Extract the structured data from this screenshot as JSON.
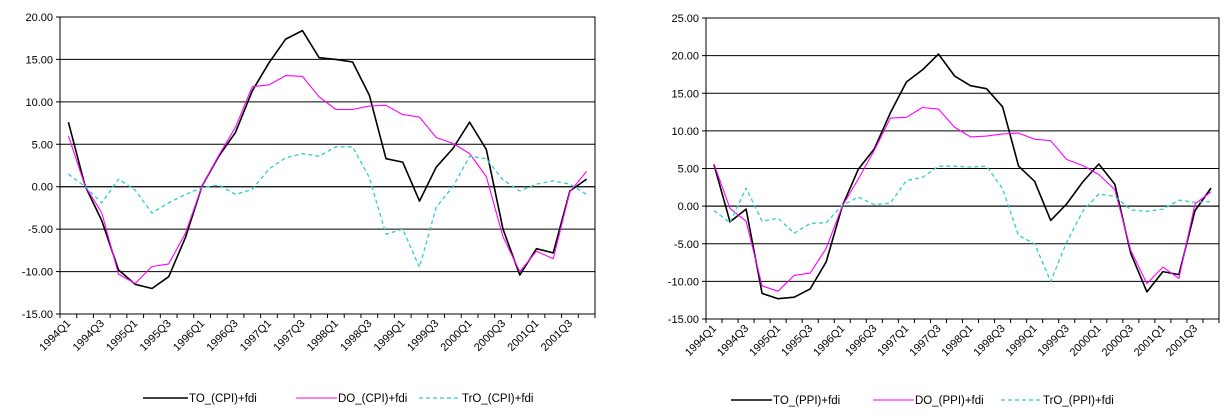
{
  "chart_data": [
    {
      "type": "line",
      "title": "",
      "xlabel": "",
      "ylabel": "",
      "ylim": [
        -15,
        20
      ],
      "ytick_step": 5,
      "ytick_labels": [
        "20.00",
        "15.00",
        "10.00",
        "5.00",
        "0.00",
        "-5.00",
        "-10.00",
        "-15.00"
      ],
      "grid": true,
      "legend": "bottom",
      "x": [
        "1994Q1",
        "1994Q2",
        "1994Q3",
        "1994Q4",
        "1995Q1",
        "1995Q2",
        "1995Q3",
        "1995Q4",
        "1996Q1",
        "1996Q2",
        "1996Q3",
        "1996Q4",
        "1997Q1",
        "1997Q2",
        "1997Q3",
        "1997Q4",
        "1998Q1",
        "1998Q2",
        "1998Q3",
        "1998Q4",
        "1999Q1",
        "1999Q2",
        "1999Q3",
        "1999Q4",
        "2000Q1",
        "2000Q2",
        "2000Q3",
        "2000Q4",
        "2001Q1",
        "2001Q2",
        "2001Q3",
        "2001Q4"
      ],
      "x_tick_labels": [
        "1994Q1",
        "1994Q3",
        "1995Q1",
        "1995Q3",
        "1996Q1",
        "1996Q3",
        "1997Q1",
        "1997Q3",
        "1998Q1",
        "1998Q3",
        "1999Q1",
        "1999Q3",
        "2000Q1",
        "2000Q3",
        "2001Q1",
        "2001Q3"
      ],
      "series": [
        {
          "name": "TO_(CPI)+fdi",
          "color": "#000000",
          "style": "solid",
          "values": [
            7.6,
            0.1,
            -4.0,
            -9.8,
            -11.5,
            -12.0,
            -10.6,
            -6.0,
            0.1,
            3.6,
            6.4,
            11.3,
            14.6,
            17.4,
            18.4,
            15.2,
            15.0,
            14.7,
            10.8,
            3.3,
            2.9,
            -1.7,
            2.3,
            4.5,
            7.6,
            4.4,
            -5.0,
            -10.4,
            -7.3,
            -7.8,
            -0.5,
            0.9
          ]
        },
        {
          "name": "DO_(CPI)+fdi",
          "color": "#ff00ff",
          "style": "solid",
          "values": [
            6.0,
            0.1,
            -3.1,
            -10.3,
            -11.4,
            -9.4,
            -9.1,
            -5.5,
            0.1,
            3.7,
            7.0,
            11.8,
            12.0,
            13.1,
            13.0,
            10.6,
            9.1,
            9.1,
            9.5,
            9.6,
            8.5,
            8.2,
            5.8,
            5.1,
            3.9,
            1.2,
            -5.9,
            -10.0,
            -7.6,
            -8.5,
            -0.6,
            1.8
          ]
        },
        {
          "name": "TrO_(CPI)+fdi",
          "color": "#33cccc",
          "style": "dashed",
          "values": [
            1.5,
            0.0,
            -1.9,
            0.9,
            -0.4,
            -3.1,
            -1.9,
            -0.9,
            -0.1,
            0.2,
            -0.9,
            -0.3,
            2.1,
            3.4,
            3.9,
            3.6,
            4.7,
            4.7,
            1.1,
            -5.6,
            -5.0,
            -9.5,
            -2.4,
            0.0,
            3.6,
            3.3,
            0.8,
            -0.5,
            0.3,
            0.7,
            0.3,
            -0.9
          ]
        }
      ]
    },
    {
      "type": "line",
      "title": "",
      "xlabel": "",
      "ylabel": "",
      "ylim": [
        -15,
        25
      ],
      "ytick_step": 5,
      "ytick_labels": [
        "25.00",
        "20.00",
        "15.00",
        "10.00",
        "5.00",
        "0.00",
        "-5.00",
        "-10.00",
        "-15.00"
      ],
      "grid": true,
      "legend": "bottom",
      "x": [
        "1994Q1",
        "1994Q2",
        "1994Q3",
        "1994Q4",
        "1995Q1",
        "1995Q2",
        "1995Q3",
        "1995Q4",
        "1996Q1",
        "1996Q2",
        "1996Q3",
        "1996Q4",
        "1997Q1",
        "1997Q2",
        "1997Q3",
        "1997Q4",
        "1998Q1",
        "1998Q2",
        "1998Q3",
        "1998Q4",
        "1999Q1",
        "1999Q2",
        "1999Q3",
        "1999Q4",
        "2000Q1",
        "2000Q2",
        "2000Q3",
        "2000Q4",
        "2001Q1",
        "2001Q2",
        "2001Q3",
        "2001Q4"
      ],
      "x_tick_labels": [
        "1994Q1",
        "1994Q3",
        "1995Q1",
        "1995Q3",
        "1996Q1",
        "1996Q3",
        "1997Q1",
        "1997Q3",
        "1998Q1",
        "1998Q3",
        "1999Q1",
        "1999Q3",
        "2000Q1",
        "2000Q3",
        "2001Q1",
        "2001Q3"
      ],
      "series": [
        {
          "name": "TO_(PPI)+fdi",
          "color": "#000000",
          "style": "solid",
          "values": [
            5.5,
            -2.1,
            -0.4,
            -11.6,
            -12.3,
            -12.1,
            -11.0,
            -7.4,
            0.0,
            4.9,
            7.6,
            12.4,
            16.5,
            18.1,
            20.2,
            17.3,
            16.0,
            15.6,
            13.2,
            5.3,
            3.3,
            -1.9,
            0.3,
            3.2,
            5.6,
            2.9,
            -6.3,
            -11.4,
            -8.7,
            -9.1,
            -0.6,
            2.4
          ]
        },
        {
          "name": "DO_(PPI)+fdi",
          "color": "#ff00ff",
          "style": "solid",
          "values": [
            5.6,
            -0.3,
            -2.0,
            -10.6,
            -11.3,
            -9.2,
            -8.9,
            -5.6,
            0.0,
            3.6,
            7.4,
            11.7,
            11.8,
            13.1,
            12.9,
            10.5,
            9.2,
            9.3,
            9.6,
            9.7,
            8.9,
            8.7,
            6.2,
            5.4,
            4.2,
            2.2,
            -5.9,
            -10.3,
            -8.1,
            -9.6,
            0.3,
            1.9
          ]
        },
        {
          "name": "TrO_(PPI)+fdi",
          "color": "#33cccc",
          "style": "dashed",
          "values": [
            -0.6,
            -2.2,
            2.4,
            -2.0,
            -1.6,
            -3.6,
            -2.3,
            -2.2,
            0.1,
            1.2,
            0.2,
            0.4,
            3.4,
            3.8,
            5.3,
            5.3,
            5.2,
            5.3,
            2.3,
            -3.9,
            -5.0,
            -10.0,
            -4.8,
            -0.7,
            1.6,
            1.3,
            -0.5,
            -0.7,
            -0.4,
            0.8,
            0.5,
            0.6
          ]
        }
      ]
    }
  ]
}
